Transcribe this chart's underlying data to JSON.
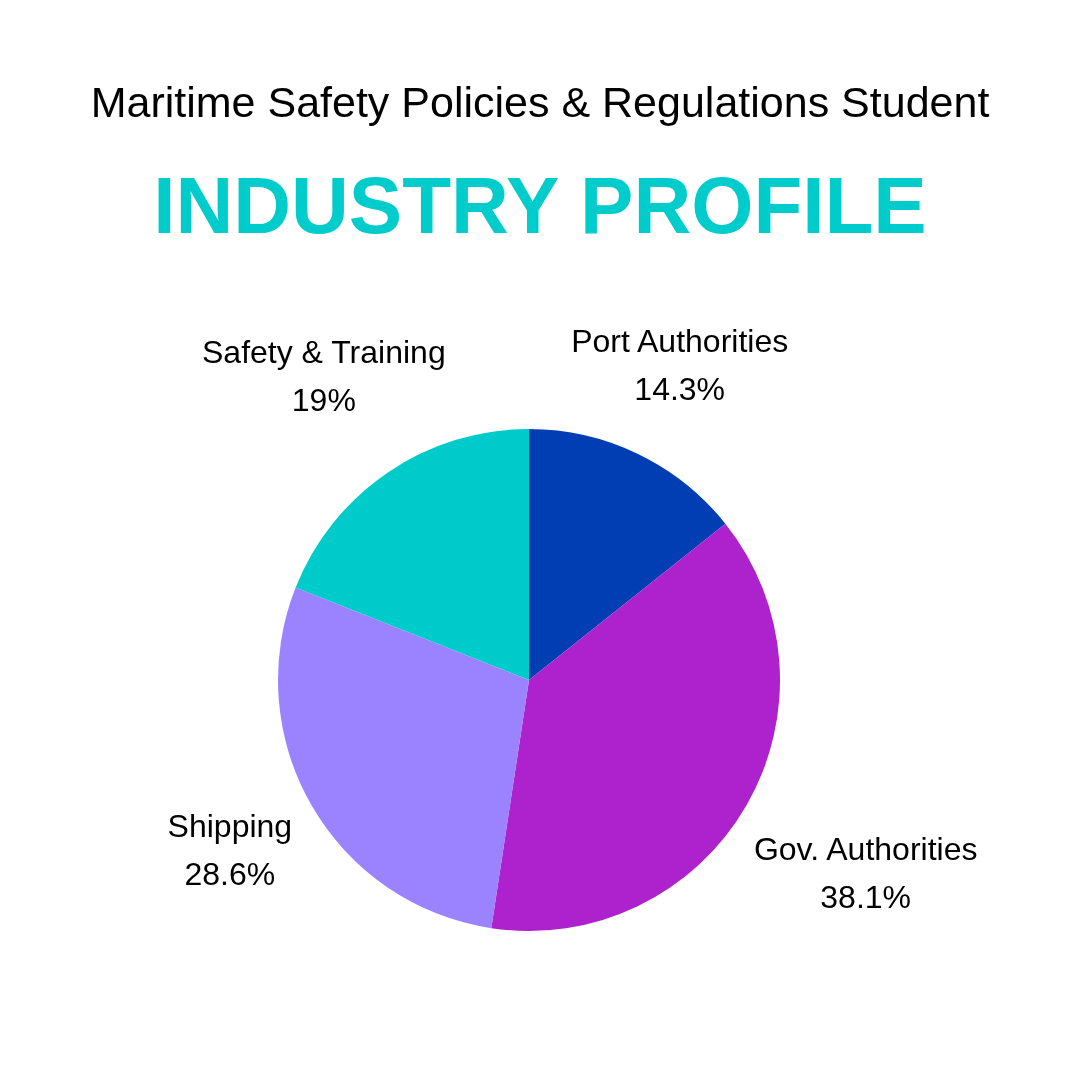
{
  "chart_data": {
    "type": "pie",
    "title": "Maritime Safety Policies & Regulations Student",
    "subtitle": "INDUSTRY PROFILE",
    "categories": [
      "Port Authorities",
      "Gov. Authorities",
      "Shipping",
      "Safety & Training"
    ],
    "values": [
      14.3,
      38.1,
      28.6,
      19
    ],
    "colors": [
      "#023eb3",
      "#ad22cc",
      "#9b82ff",
      "#00cbcb"
    ],
    "value_labels": [
      "14.3%",
      "38.1%",
      "28.6%",
      "19%"
    ]
  }
}
